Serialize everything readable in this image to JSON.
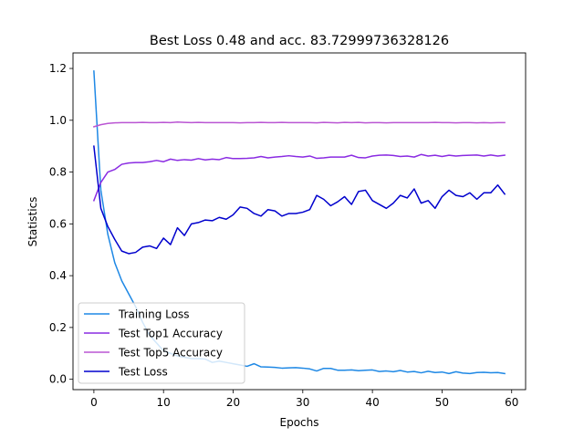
{
  "chart_data": {
    "type": "line",
    "title": "Best Loss 0.48 and acc. 83.72999736328126",
    "xlabel": "Epochs",
    "ylabel": "Statistics",
    "xlim": [
      -3,
      62
    ],
    "ylim": [
      -0.04,
      1.26
    ],
    "xticks": [
      0,
      10,
      20,
      30,
      40,
      50,
      60
    ],
    "yticks": [
      0.0,
      0.2,
      0.4,
      0.6,
      0.8,
      1.0,
      1.2
    ],
    "xtick_labels": [
      "0",
      "10",
      "20",
      "30",
      "40",
      "50",
      "60"
    ],
    "ytick_labels": [
      "0.0",
      "0.2",
      "0.4",
      "0.6",
      "0.8",
      "1.0",
      "1.2"
    ],
    "grid": false,
    "legend_position": "lower-left",
    "x": [
      0,
      1,
      2,
      3,
      4,
      5,
      6,
      7,
      8,
      9,
      10,
      11,
      12,
      13,
      14,
      15,
      16,
      17,
      18,
      19,
      20,
      21,
      22,
      23,
      24,
      25,
      26,
      27,
      28,
      29,
      30,
      31,
      32,
      33,
      34,
      35,
      36,
      37,
      38,
      39,
      40,
      41,
      42,
      43,
      44,
      45,
      46,
      47,
      48,
      49,
      50,
      51,
      52,
      53,
      54,
      55,
      56,
      57,
      58,
      59
    ],
    "series": [
      {
        "name": "Training Loss",
        "color": "#1e88e5",
        "values": [
          1.19,
          0.73,
          0.56,
          0.45,
          0.38,
          0.33,
          0.28,
          0.22,
          0.17,
          0.14,
          0.11,
          0.1,
          0.09,
          0.085,
          0.08,
          0.08,
          0.078,
          0.065,
          0.07,
          0.065,
          0.06,
          0.055,
          0.05,
          0.06,
          0.048,
          0.047,
          0.046,
          0.043,
          0.044,
          0.045,
          0.043,
          0.04,
          0.032,
          0.042,
          0.042,
          0.035,
          0.035,
          0.036,
          0.033,
          0.035,
          0.036,
          0.03,
          0.032,
          0.029,
          0.034,
          0.028,
          0.03,
          0.025,
          0.031,
          0.026,
          0.028,
          0.022,
          0.029,
          0.024,
          0.022,
          0.026,
          0.027,
          0.025,
          0.026,
          0.022
        ]
      },
      {
        "name": "Test Top1 Accuracy",
        "color": "#8a2be2",
        "values": [
          0.69,
          0.76,
          0.8,
          0.81,
          0.83,
          0.835,
          0.837,
          0.837,
          0.84,
          0.845,
          0.84,
          0.85,
          0.845,
          0.848,
          0.846,
          0.852,
          0.847,
          0.85,
          0.848,
          0.856,
          0.852,
          0.852,
          0.853,
          0.855,
          0.86,
          0.855,
          0.858,
          0.86,
          0.863,
          0.86,
          0.858,
          0.862,
          0.853,
          0.855,
          0.858,
          0.858,
          0.858,
          0.865,
          0.856,
          0.855,
          0.862,
          0.865,
          0.866,
          0.864,
          0.86,
          0.862,
          0.858,
          0.868,
          0.862,
          0.865,
          0.86,
          0.865,
          0.862,
          0.864,
          0.865,
          0.866,
          0.862,
          0.866,
          0.862,
          0.865
        ]
      },
      {
        "name": "Test Top5 Accuracy",
        "color": "#ba55d3",
        "values": [
          0.975,
          0.983,
          0.988,
          0.99,
          0.991,
          0.991,
          0.991,
          0.992,
          0.991,
          0.991,
          0.992,
          0.991,
          0.993,
          0.992,
          0.991,
          0.992,
          0.991,
          0.991,
          0.991,
          0.991,
          0.991,
          0.99,
          0.991,
          0.991,
          0.992,
          0.991,
          0.991,
          0.992,
          0.991,
          0.991,
          0.991,
          0.991,
          0.99,
          0.992,
          0.991,
          0.99,
          0.992,
          0.991,
          0.992,
          0.99,
          0.991,
          0.991,
          0.99,
          0.991,
          0.991,
          0.991,
          0.991,
          0.991,
          0.991,
          0.992,
          0.991,
          0.991,
          0.99,
          0.991,
          0.991,
          0.99,
          0.991,
          0.99,
          0.991,
          0.991
        ]
      },
      {
        "name": "Test Loss",
        "color": "#0000cd",
        "values": [
          0.9,
          0.66,
          0.59,
          0.54,
          0.495,
          0.485,
          0.49,
          0.51,
          0.515,
          0.505,
          0.545,
          0.52,
          0.585,
          0.555,
          0.6,
          0.605,
          0.615,
          0.612,
          0.625,
          0.618,
          0.635,
          0.665,
          0.66,
          0.64,
          0.63,
          0.655,
          0.65,
          0.63,
          0.64,
          0.64,
          0.645,
          0.655,
          0.71,
          0.695,
          0.67,
          0.685,
          0.705,
          0.675,
          0.725,
          0.73,
          0.69,
          0.675,
          0.66,
          0.68,
          0.71,
          0.7,
          0.735,
          0.68,
          0.69,
          0.66,
          0.705,
          0.73,
          0.71,
          0.705,
          0.72,
          0.695,
          0.72,
          0.72,
          0.75,
          0.715
        ]
      }
    ]
  }
}
